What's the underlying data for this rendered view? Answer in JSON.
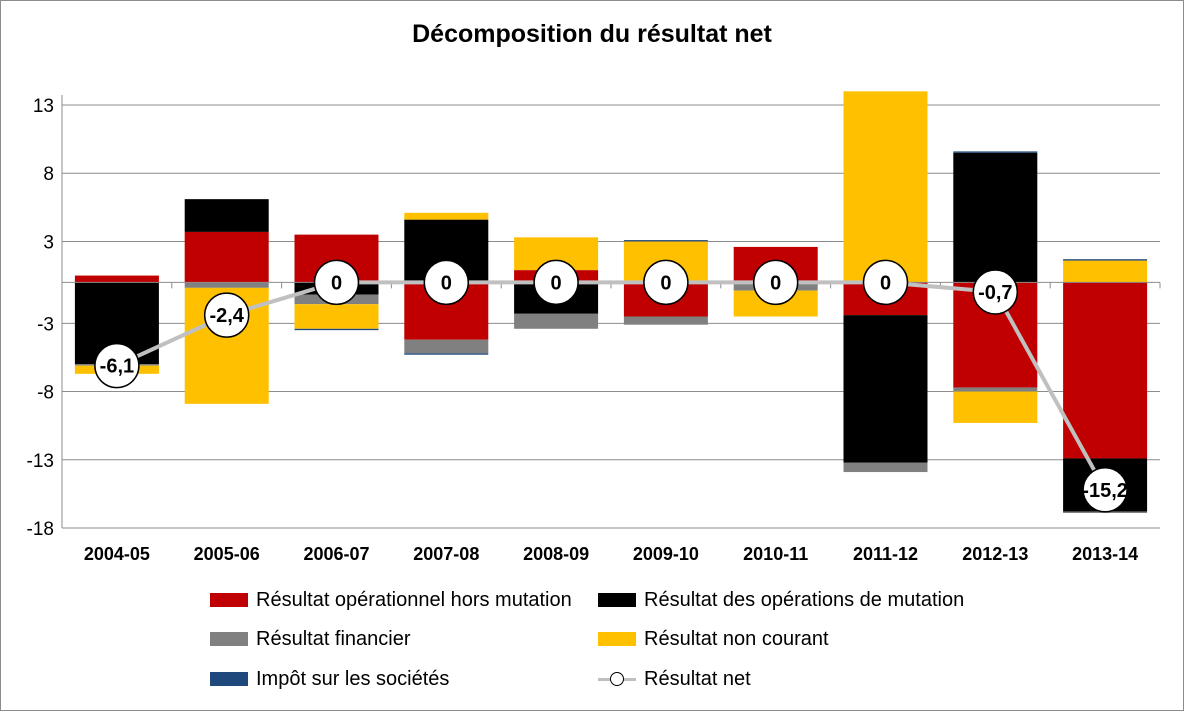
{
  "chart_data": {
    "type": "bar",
    "subtype": "stacked-bar-with-line",
    "title": "Décomposition du résultat net",
    "categories": [
      "2004-05",
      "2005-06",
      "2006-07",
      "2007-08",
      "2008-09",
      "2009-10",
      "2010-11",
      "2011-12",
      "2012-13",
      "2013-14"
    ],
    "ylim": [
      -18,
      15
    ],
    "yticks": [
      -18,
      -13,
      -8,
      -3,
      3,
      8,
      13
    ],
    "grid": true,
    "legend_position": "bottom",
    "series": [
      {
        "name": "Résultat opérationnel hors mutation",
        "color": "#c00000",
        "values": [
          0.5,
          3.7,
          3.5,
          -4.2,
          0.9,
          -2.5,
          2.6,
          -2.4,
          -7.7,
          -12.9
        ]
      },
      {
        "name": "Résultat des opérations de mutation",
        "color": "#000000",
        "values": [
          -6.0,
          2.4,
          -0.9,
          4.6,
          -2.3,
          0.0,
          0.0,
          -10.8,
          9.5,
          -3.9
        ]
      },
      {
        "name": "Résultat financier",
        "color": "#808080",
        "values": [
          -0.1,
          -0.4,
          -0.7,
          -1.0,
          -1.1,
          -0.6,
          -0.6,
          -0.7,
          -0.3,
          -0.1
        ]
      },
      {
        "name": "Résultat non courant",
        "color": "#ffc000",
        "values": [
          -0.6,
          -8.5,
          -1.8,
          0.5,
          2.4,
          3.0,
          -1.9,
          14.0,
          -2.3,
          1.6
        ]
      },
      {
        "name": "Impôt sur les sociétés",
        "color": "#1f497d",
        "values": [
          0.0,
          0.0,
          -0.1,
          -0.1,
          0.0,
          0.1,
          0.0,
          0.0,
          0.1,
          0.1
        ]
      }
    ],
    "line_series": {
      "name": "Résultat net",
      "color": "#c0c0c0",
      "values": [
        -6.1,
        -2.4,
        0,
        0,
        0,
        0,
        0,
        0,
        -0.7,
        -15.2
      ],
      "labels": [
        "-6,1",
        "-2,4",
        "0",
        "0",
        "0",
        "0",
        "0",
        "0",
        "-0,7",
        "-15,2"
      ]
    }
  },
  "legend": {
    "items": [
      {
        "label": "Résultat opérationnel hors mutation",
        "color": "#c00000",
        "kind": "bar"
      },
      {
        "label": "Résultat des opérations de mutation",
        "color": "#000000",
        "kind": "bar"
      },
      {
        "label": "Résultat financier",
        "color": "#808080",
        "kind": "bar"
      },
      {
        "label": "Résultat non courant",
        "color": "#ffc000",
        "kind": "bar"
      },
      {
        "label": "Impôt sur les sociétés",
        "color": "#1f497d",
        "kind": "bar"
      },
      {
        "label": "Résultat net",
        "color": "#c0c0c0",
        "kind": "line"
      }
    ]
  }
}
